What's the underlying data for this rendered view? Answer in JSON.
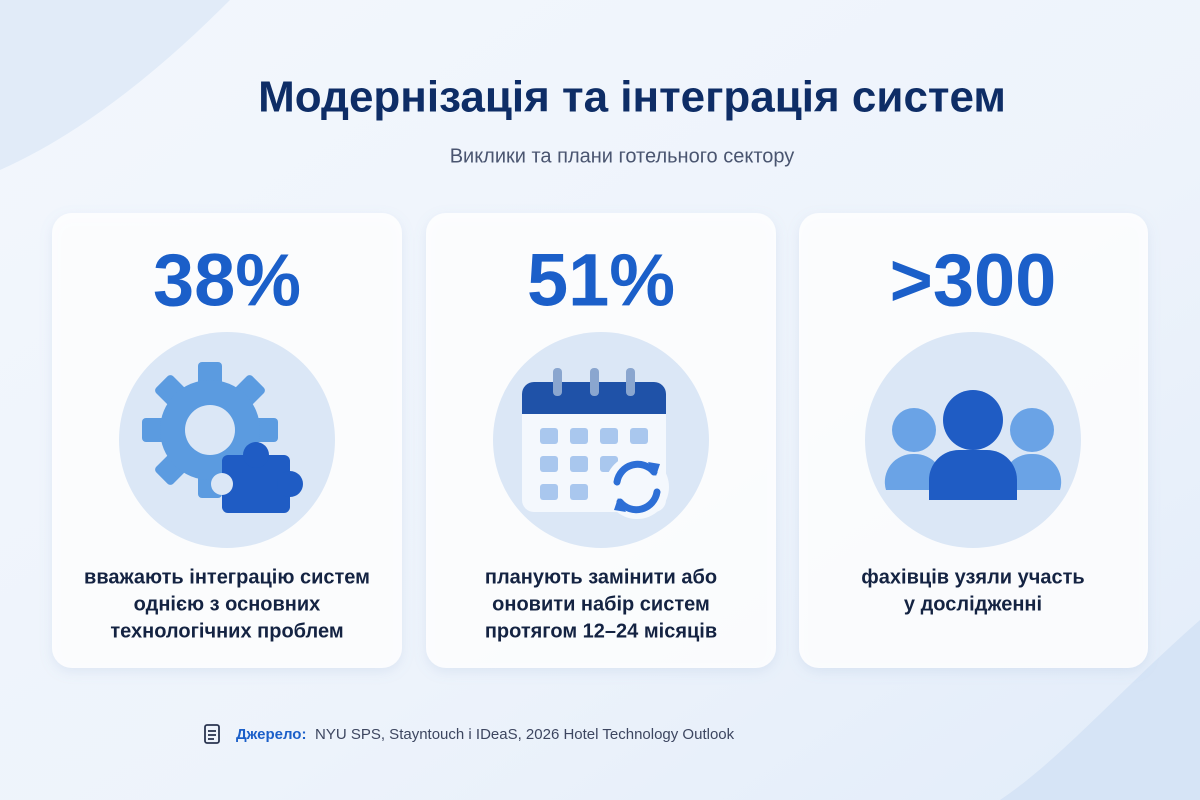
{
  "header": {
    "title": "Модернізація та інтеграція систем",
    "subtitle": "Виклики та плани готельного сектору"
  },
  "cards": [
    {
      "stat": "38%",
      "description": [
        "вважають інтеграцію систем",
        "однією з основних",
        "технологічних проблем"
      ]
    },
    {
      "stat": "51%",
      "description": [
        "планують замінити або",
        "оновити набір систем",
        "протягом 12–24 місяців"
      ]
    },
    {
      "stat": ">300",
      "description": [
        "фахівців узяли участь",
        "у дослідженні"
      ]
    }
  ],
  "source": {
    "label": "Джерело:",
    "text": "NYU SPS, Stayntouch і IDeaS, 2026 Hotel Technology Outlook"
  }
}
